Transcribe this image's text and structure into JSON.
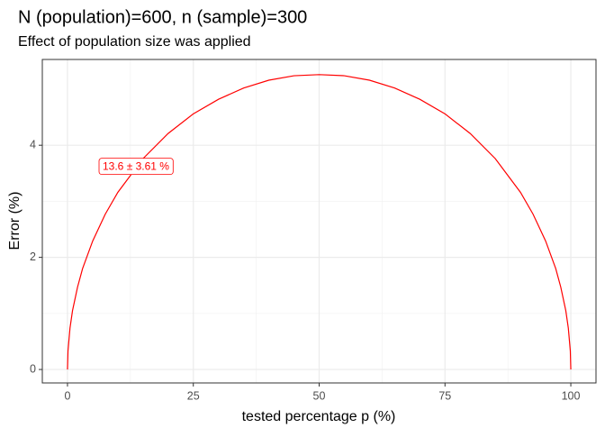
{
  "chart_data": {
    "type": "line",
    "title": "N (population)=600, n (sample)=300",
    "subtitle": "Effect of population size was applied",
    "x_label": "tested percentage p (%)",
    "y_label": "Error (%)",
    "x": [
      0,
      0.1,
      0.5,
      1,
      2,
      3,
      5,
      7.5,
      10,
      15,
      20,
      25,
      30,
      35,
      40,
      45,
      50,
      55,
      60,
      65,
      70,
      75,
      80,
      85,
      90,
      92.5,
      95,
      97,
      98,
      99,
      99.5,
      99.9,
      100
    ],
    "series": [
      {
        "name": "Error",
        "color": "#ff0000",
        "values": [
          0,
          0.33,
          0.74,
          1.05,
          1.47,
          1.8,
          2.29,
          2.77,
          3.16,
          3.76,
          4.21,
          4.56,
          4.82,
          5.02,
          5.16,
          5.24,
          5.26,
          5.24,
          5.16,
          5.02,
          4.82,
          4.56,
          4.21,
          3.76,
          3.16,
          2.77,
          2.29,
          1.8,
          1.47,
          1.05,
          0.74,
          0.33,
          0
        ]
      }
    ],
    "annotation": {
      "text": "13.6 ± 3.61 %",
      "x": 13.6,
      "y": 3.61
    },
    "xlim": [
      -5,
      105
    ],
    "ylim": [
      -0.24,
      5.53
    ],
    "xticks": [
      0,
      25,
      50,
      75,
      100
    ],
    "yticks": [
      0,
      2,
      4
    ],
    "grid": true,
    "minor_grid": true
  }
}
